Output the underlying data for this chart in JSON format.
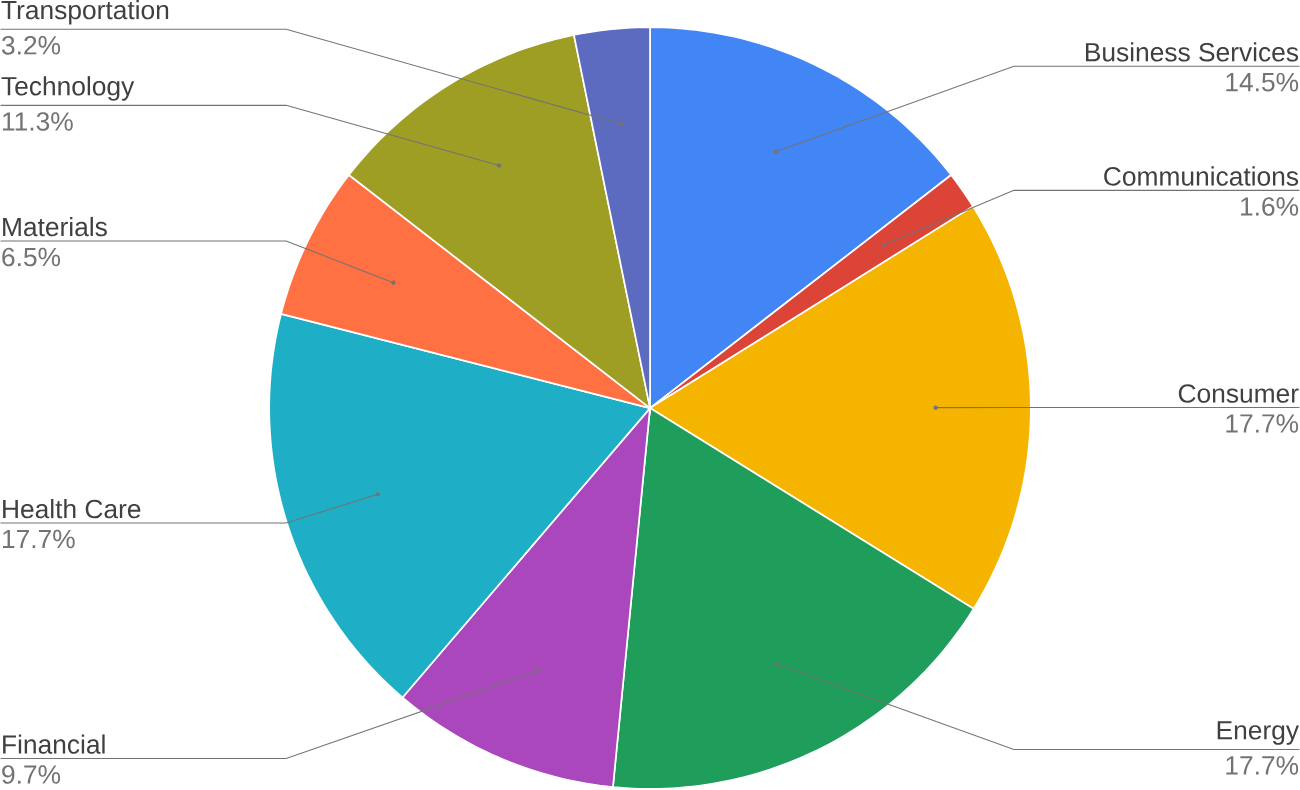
{
  "chart_data": {
    "type": "pie",
    "categories": [
      "Business Services",
      "Communications",
      "Consumer",
      "Energy",
      "Financial",
      "Health Care",
      "Materials",
      "Technology",
      "Transportation"
    ],
    "values": [
      14.5,
      1.6,
      17.7,
      17.7,
      9.7,
      17.7,
      6.5,
      11.3,
      3.2
    ],
    "value_labels": [
      "14.5%",
      "1.6%",
      "17.7%",
      "17.7%",
      "9.7%",
      "17.7%",
      "6.5%",
      "11.3%",
      "3.2%"
    ],
    "colors": [
      "#4285f4",
      "#db4437",
      "#f4b400",
      "#1e9e5a",
      "#ab47bc",
      "#1eaec5",
      "#ff7043",
      "#9e9d24",
      "#5c6bc0"
    ]
  }
}
